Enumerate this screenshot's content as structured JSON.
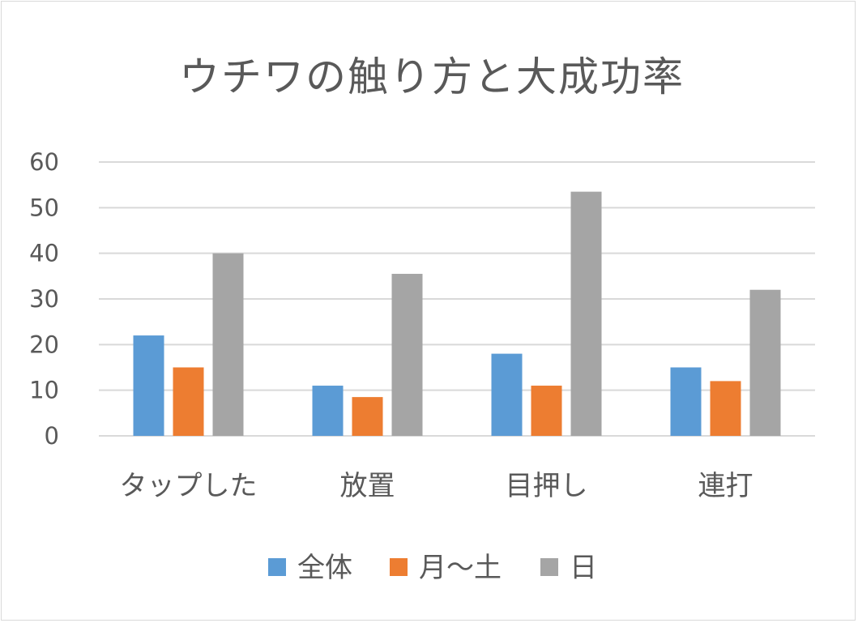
{
  "chart_data": {
    "type": "bar",
    "title": "ウチワの触り方と大成功率",
    "categories": [
      "タップした",
      "放置",
      "目押し",
      "連打"
    ],
    "series": [
      {
        "name": "全体",
        "color": "#5B9BD5",
        "values": [
          22,
          11,
          18,
          15
        ]
      },
      {
        "name": "月〜土",
        "color": "#ED7D31",
        "values": [
          15,
          8.5,
          11,
          12
        ]
      },
      {
        "name": "日",
        "color": "#A5A5A5",
        "values": [
          40,
          35.5,
          53.5,
          32
        ]
      }
    ],
    "yticks": [
      "0",
      "10",
      "20",
      "30",
      "40",
      "50",
      "60"
    ],
    "ylim": [
      0,
      60
    ],
    "xlabel": "",
    "ylabel": "",
    "grid": true,
    "legend_position": "bottom"
  }
}
